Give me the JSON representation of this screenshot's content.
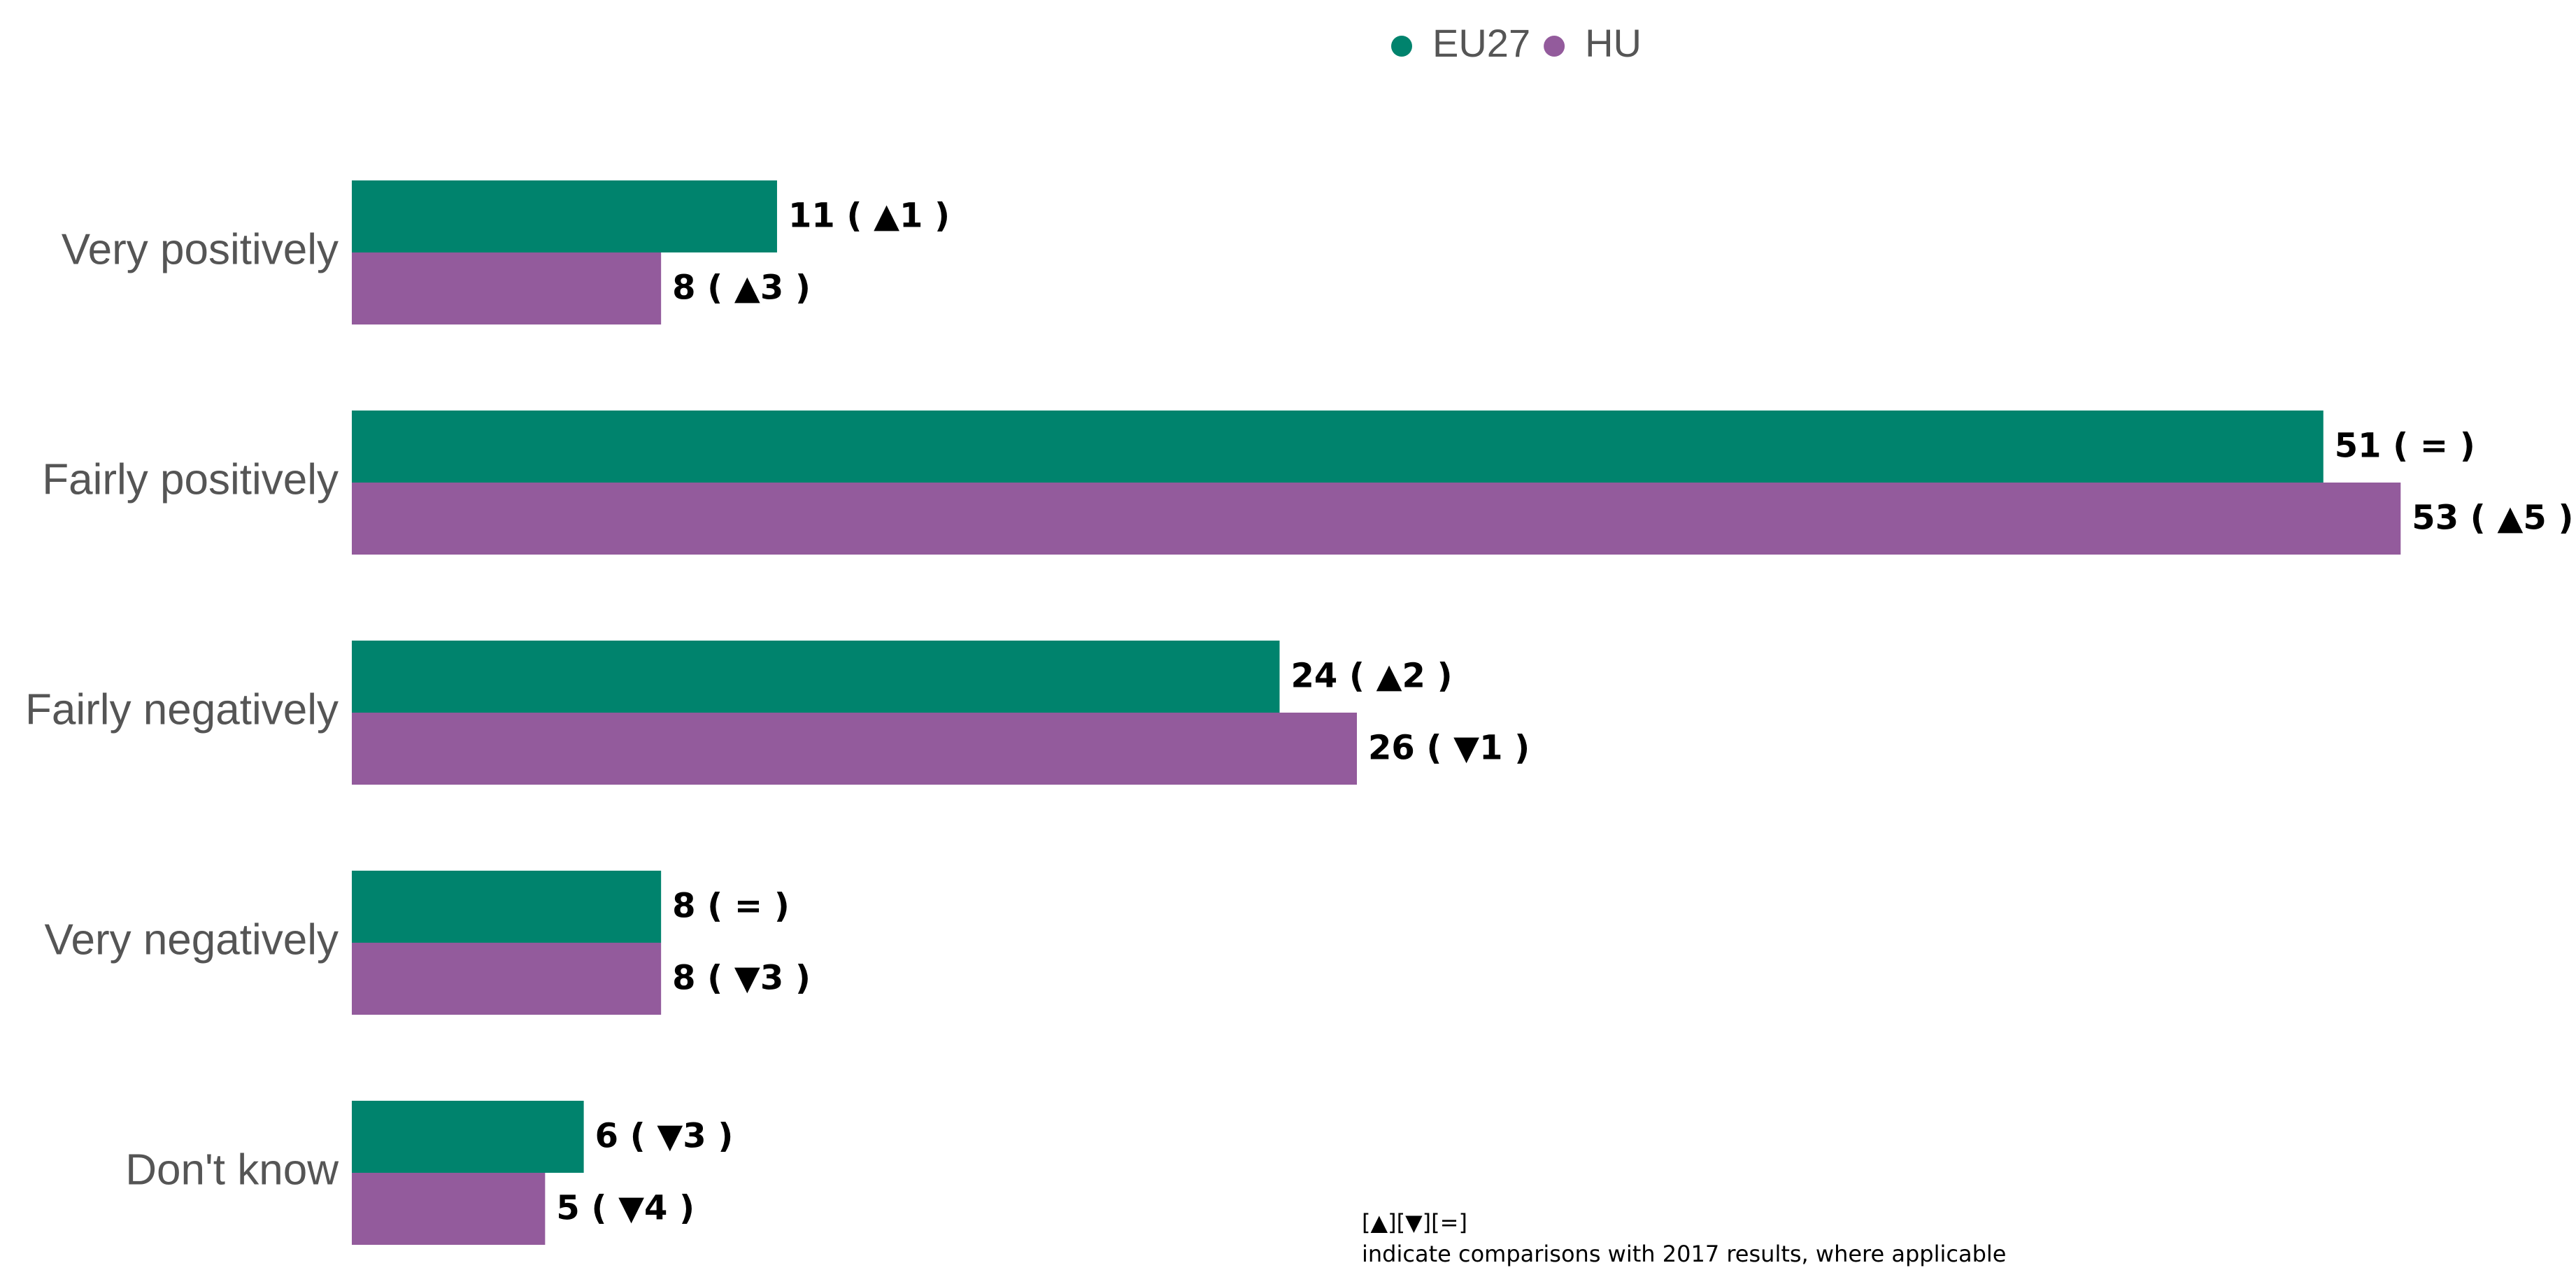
{
  "chart_data": {
    "type": "hbar",
    "categories": [
      "Very positively",
      "Fairly positively",
      "Fairly negatively",
      "Very negatively",
      "Don't know"
    ],
    "series": [
      {
        "name": "EU27",
        "color": "#00836d",
        "values": [
          11,
          51,
          24,
          8,
          6
        ],
        "value_labels": [
          "11 ( ▲1 )",
          "51 ( = )",
          "24 ( ▲2 )",
          "8 ( = )",
          "6 ( ▼3 )"
        ]
      },
      {
        "name": "HU",
        "color": "#935b9c",
        "values": [
          8,
          53,
          26,
          8,
          5
        ],
        "value_labels": [
          "8 ( ▲3 )",
          "53 ( ▲5 )",
          "26 ( ▼1 )",
          "8 ( ▼3 )",
          "5 ( ▼4 )"
        ]
      }
    ],
    "legend": "top",
    "footnote": [
      "[▲][▼][=]",
      "indicate comparisons with 2017 results, where applicable"
    ]
  }
}
